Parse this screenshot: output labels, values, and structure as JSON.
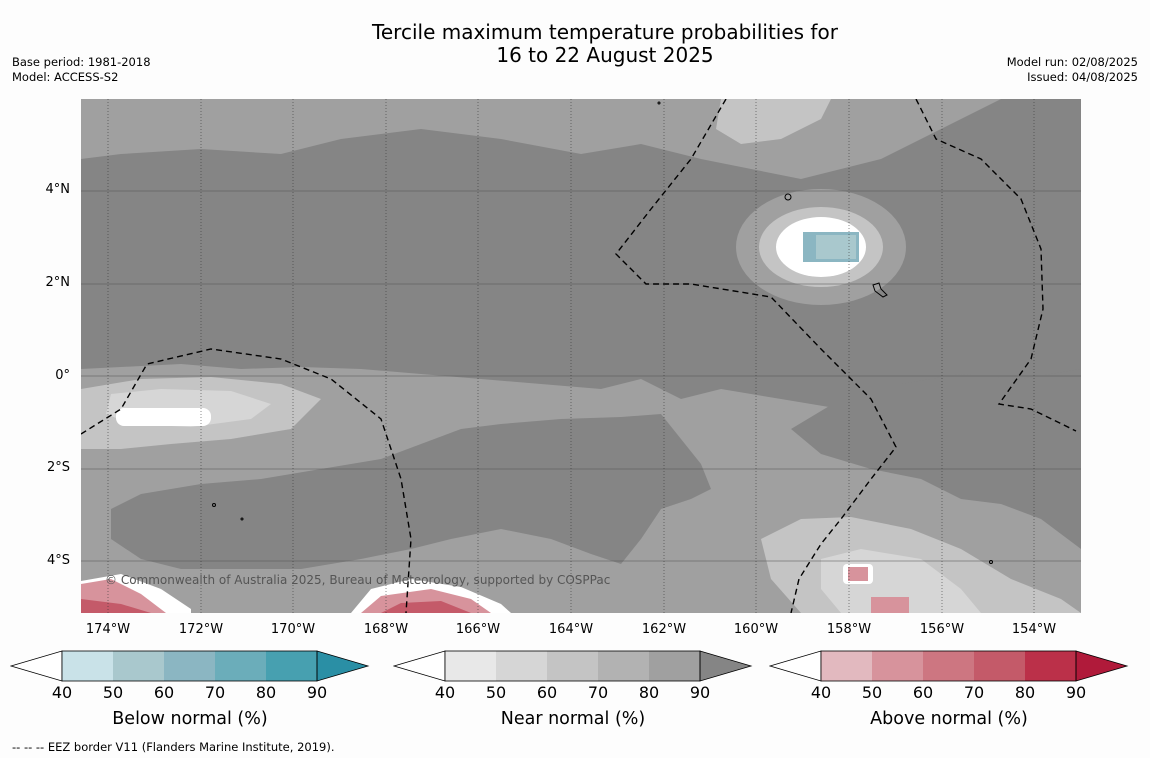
{
  "title_line1": "Tercile maximum temperature probabilities for",
  "title_line2": "16 to 22 August 2025",
  "base_period": "Base period: 1981-2018",
  "model": "Model: ACCESS-S2",
  "model_run": "Model run: 02/08/2025",
  "issued": "Issued: 04/08/2025",
  "lat_labels": [
    "4°N",
    "2°N",
    "0°",
    "2°S",
    "4°S"
  ],
  "lon_labels": [
    "174°W",
    "172°W",
    "170°W",
    "168°W",
    "166°W",
    "164°W",
    "162°W",
    "160°W",
    "158°W",
    "156°W",
    "154°W"
  ],
  "credit": "© Commonwealth of Australia 2025, Bureau of Meteorology, supported by COSPPac",
  "colorbars": [
    {
      "label": "Below normal (%)",
      "ticks": [
        "40",
        "50",
        "60",
        "70",
        "80",
        "90"
      ],
      "colors": [
        "#ffffff",
        "#c9e2e8",
        "#a9c8cd",
        "#8bb6c2",
        "#6badba",
        "#47a0b0",
        "#2a8fa5"
      ]
    },
    {
      "label": "Near normal (%)",
      "ticks": [
        "40",
        "50",
        "60",
        "70",
        "80",
        "90"
      ],
      "colors": [
        "#ffffff",
        "#e8e8e8",
        "#d6d6d6",
        "#c4c4c4",
        "#b2b2b2",
        "#a0a0a0",
        "#858585"
      ]
    },
    {
      "label": "Above normal (%)",
      "ticks": [
        "40",
        "50",
        "60",
        "70",
        "80",
        "90"
      ],
      "colors": [
        "#ffffff",
        "#e2b9bf",
        "#d7939c",
        "#cd7681",
        "#c45a69",
        "#bb3049",
        "#b01a3a"
      ]
    }
  ],
  "footer": "--  --  -- EEZ border V11 (Flanders Marine Institute, 2019)."
}
